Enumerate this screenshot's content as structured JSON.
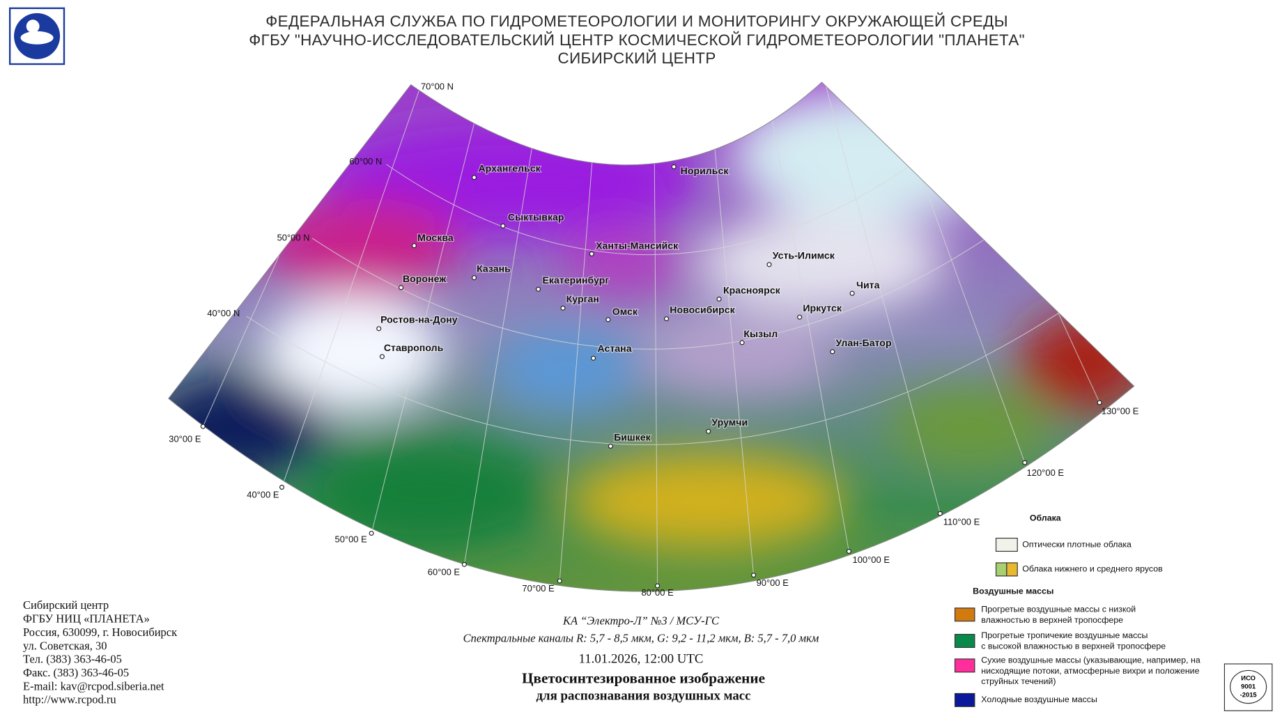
{
  "header": {
    "lines": [
      "ФЕДЕРАЛЬНАЯ СЛУЖБА ПО ГИДРОМЕТЕОРОЛОГИИ И МОНИТОРИНГУ ОКРУЖАЮЩЕЙ СРЕДЫ",
      "ФГБУ \"НАУЧНО-ИССЛЕДОВАТЕЛЬСКИЙ ЦЕНТР КОСМИЧЕСКОЙ ГИДРОМЕТЕОРОЛОГИИ \"ПЛАНЕТА\"",
      "СИБИРСКИЙ ЦЕНТР"
    ]
  },
  "latitude_labels": [
    "70°00 N",
    "60°00 N",
    "50°00 N",
    "40°00 N"
  ],
  "longitude_labels": [
    "30°00 E",
    "40°00 E",
    "50°00 E",
    "60°00 E",
    "70°00 E",
    "80°00 E",
    "90°00 E",
    "100°00 E",
    "110°00 E",
    "120°00 E",
    "130°00 E"
  ],
  "cities": [
    "Архангельск",
    "Норильск",
    "Сыктывкар",
    "Москва",
    "Ханты-Мансийск",
    "Казань",
    "Усть-Илимск",
    "Воронеж",
    "Екатеринбург",
    "Чита",
    "Красноярск",
    "Курган",
    "Омск",
    "Новосибирск",
    "Иркутск",
    "Ростов-на-Дону",
    "Кызыл",
    "Улан-Батор",
    "Ставрополь",
    "Астана",
    "Урумчи",
    "Бишкек"
  ],
  "contact": [
    "Сибирский центр",
    "ФГБУ НИЦ «ПЛАНЕТА»",
    "Россия, 630099, г. Новосибирск",
    "ул. Советская, 30",
    "Тел. (383) 363-46-05",
    "Факс. (383) 363-46-05",
    "E-mail: kav@rcpod.siberia.net",
    "http://www.rcpod.ru"
  ],
  "caption": {
    "satellite": "КА “Электро-Л” №3 / МСУ-ГС",
    "channels": "Спектральные каналы R: 5,7 - 8,5 мкм, G: 9,2 - 11,2 мкм, B: 5,7 - 7,0 мкм",
    "datetime": "11.01.2026, 12:00 UTC",
    "title_lines": [
      "Цветосинтезированное изображение",
      "для распознавания воздушных масс"
    ]
  },
  "legend": {
    "clouds_title": "Облака",
    "clouds": [
      "Оптически плотные облака",
      "Облака нижнего и среднего ярусов"
    ],
    "air_masses_title": "Воздушные массы",
    "air_masses": [
      [
        "Прогретые воздушные массы с низкой",
        "влажностью в верхней тропосфере"
      ],
      [
        "Прогретые тропичекие воздушные массы",
        "с высокой влажностью в верхней тропосфере"
      ],
      [
        "Сухие воздушные массы (указывающие, например, на",
        "нисходящие потоки, атмосферные вихри и положение",
        "струйных течений)"
      ],
      [
        "Холодные воздушные массы"
      ]
    ]
  },
  "certificate": [
    "ИСО",
    "9001",
    "-2015"
  ]
}
